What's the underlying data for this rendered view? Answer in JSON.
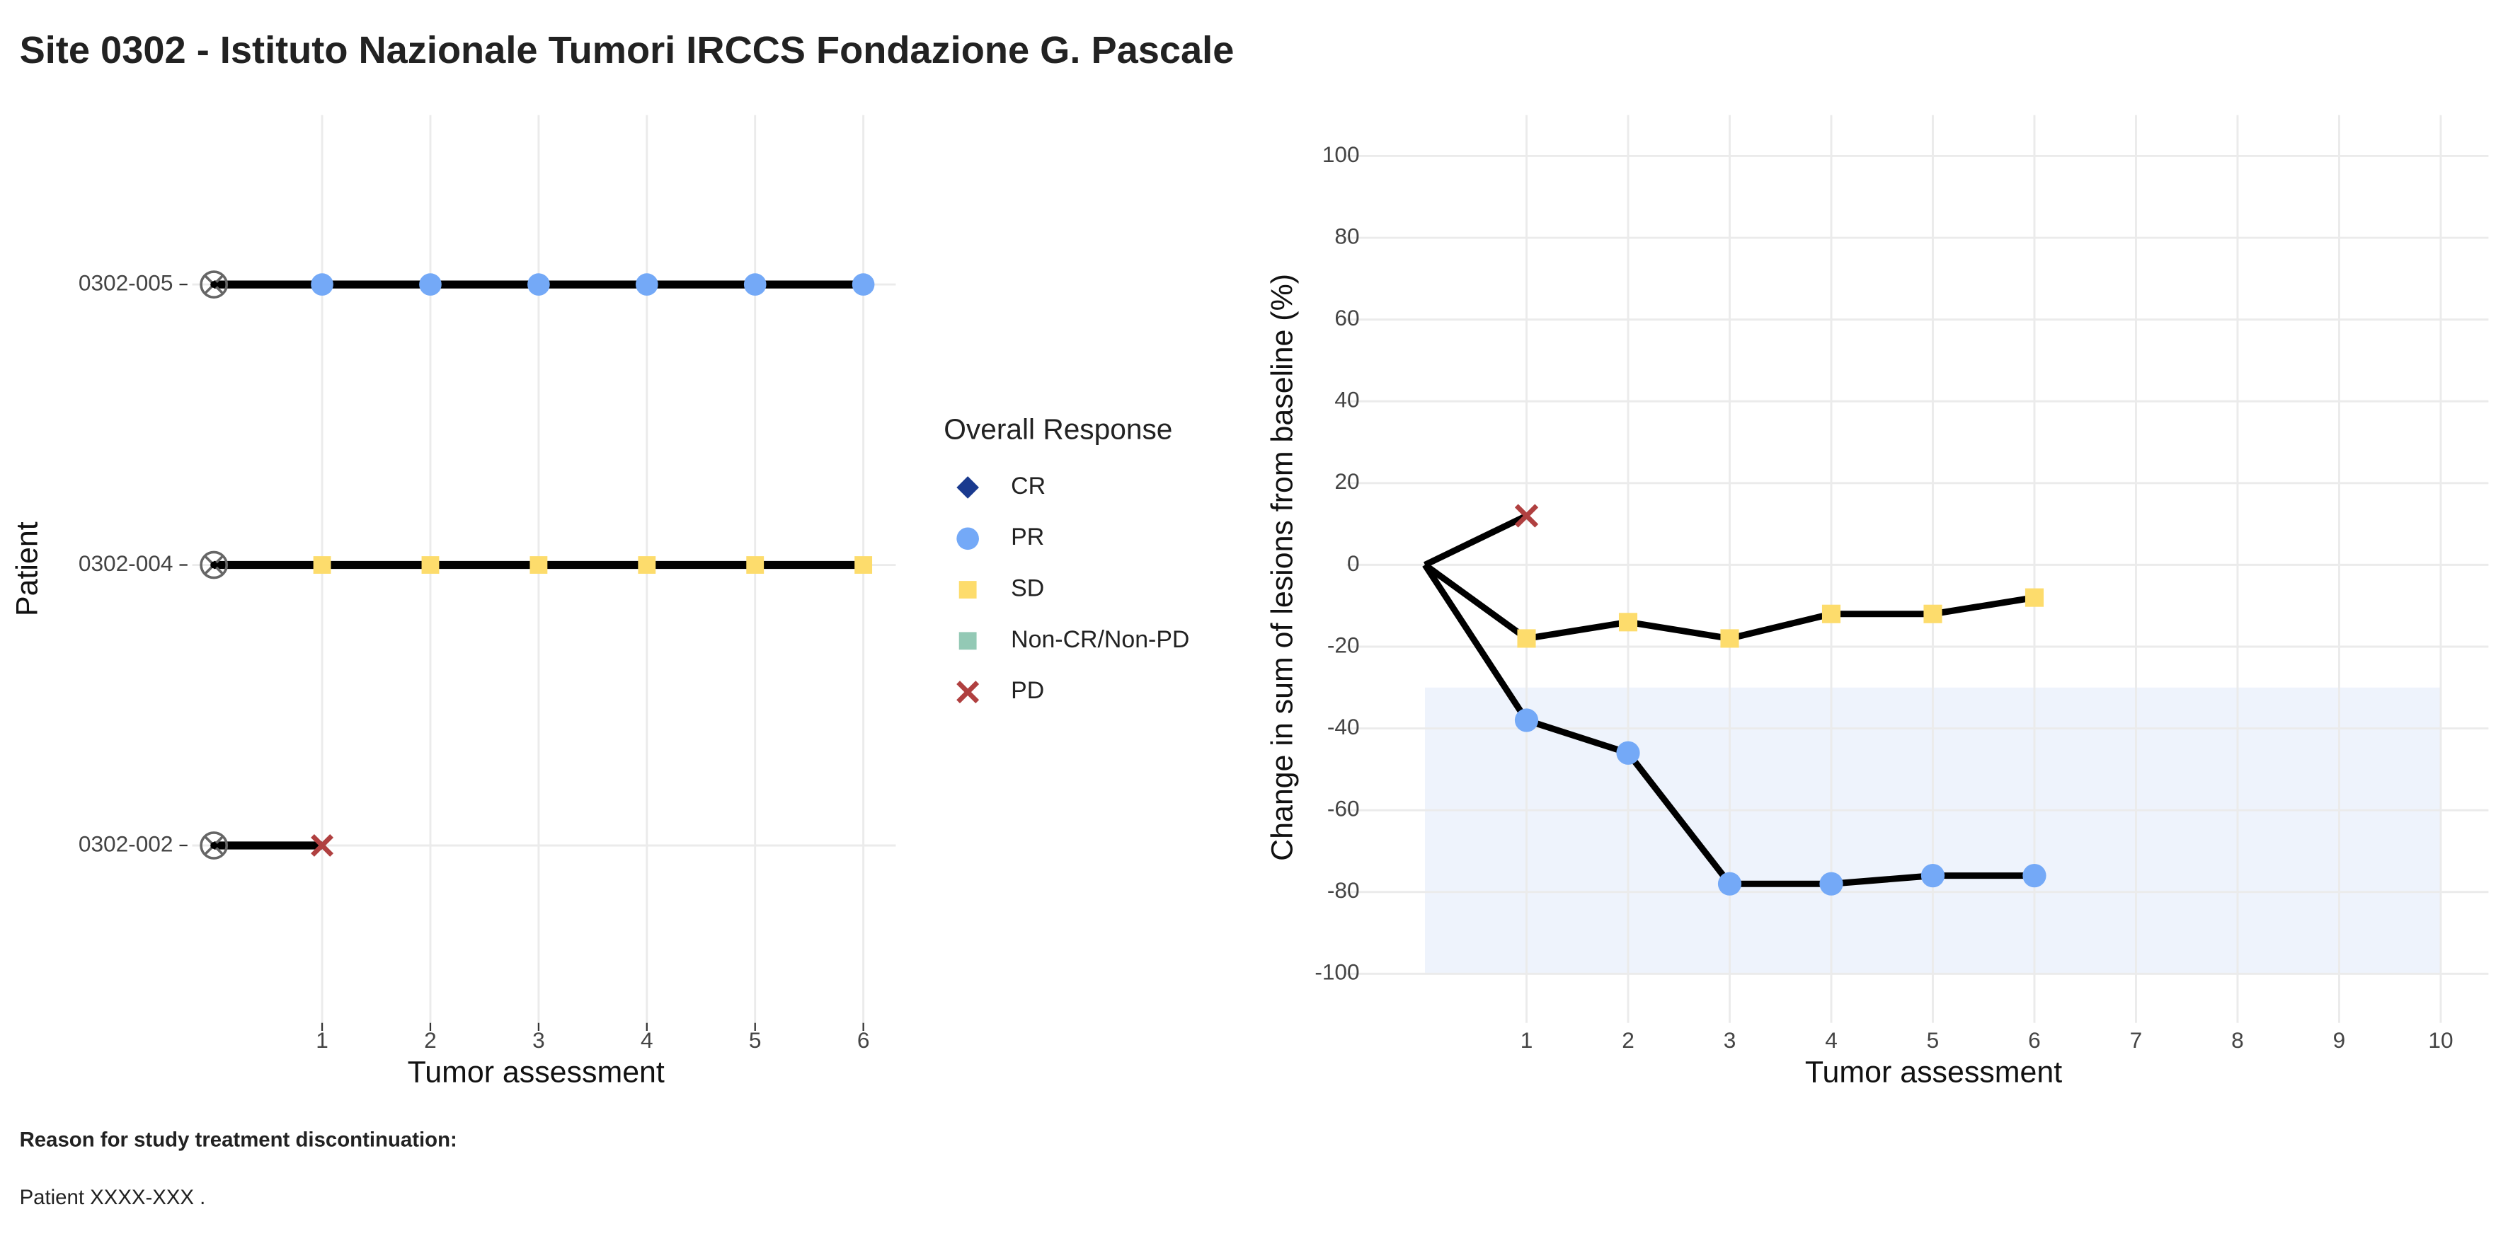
{
  "title": "Site 0302 - Istituto Nazionale Tumori IRCCS Fondazione G. Pascale",
  "chart_data": [
    {
      "type": "swimmer",
      "x_label": "Tumor assessment",
      "y_label": "Patient",
      "xlim": [
        -0.2,
        6.3
      ],
      "xticks": [
        1,
        2,
        3,
        4,
        5,
        6
      ],
      "grid": true,
      "line_color": "#000000",
      "baseline_color": "#666666",
      "patients": [
        {
          "id": "0302-005",
          "x": [
            0,
            1,
            2,
            3,
            4,
            5,
            6
          ],
          "response": [
            null,
            "PR",
            "PR",
            "PR",
            "PR",
            "PR",
            "PR"
          ]
        },
        {
          "id": "0302-004",
          "x": [
            0,
            1,
            2,
            3,
            4,
            5,
            6
          ],
          "response": [
            null,
            "SD",
            "SD",
            "SD",
            "SD",
            "SD",
            "SD"
          ]
        },
        {
          "id": "0302-002",
          "x": [
            0,
            1
          ],
          "response": [
            null,
            "PD"
          ]
        }
      ]
    },
    {
      "type": "spider",
      "x_label": "Tumor assessment",
      "y_label": "Change in sum of lesions from baseline (%)",
      "xlim": [
        -0.77,
        10.47
      ],
      "xticks": [
        1,
        2,
        3,
        4,
        5,
        6,
        7,
        8,
        9,
        10
      ],
      "ylim": [
        -112,
        110
      ],
      "yticks": [
        -100,
        -80,
        -60,
        -40,
        -20,
        0,
        20,
        40,
        60,
        80,
        100
      ],
      "grid": true,
      "line_color": "#000000",
      "band": {
        "x": [
          0,
          10
        ],
        "y": [
          -30,
          -100
        ],
        "color": "#eef3fc"
      },
      "series": [
        {
          "x": [
            0,
            1
          ],
          "y": [
            0,
            12
          ],
          "response": [
            null,
            "PD"
          ]
        },
        {
          "x": [
            0,
            1,
            2,
            3,
            4,
            5,
            6
          ],
          "y": [
            0,
            -18,
            -14,
            -18,
            -12,
            -12,
            -8
          ],
          "response": [
            null,
            "SD",
            "SD",
            "SD",
            "SD",
            "SD",
            "SD"
          ]
        },
        {
          "x": [
            0,
            1,
            2,
            3,
            4,
            5,
            6
          ],
          "y": [
            0,
            -38,
            -46,
            -78,
            -78,
            -76,
            -76
          ],
          "response": [
            null,
            "PR",
            "PR",
            "PR",
            "PR",
            "PR",
            "PR"
          ]
        }
      ]
    }
  ],
  "legend": {
    "title": "Overall Response",
    "items": [
      {
        "name": "CR",
        "color": "#1a3a8f",
        "shape": "diamond"
      },
      {
        "name": "PR",
        "color": "#74a9f7",
        "shape": "circle"
      },
      {
        "name": "SD",
        "color": "#fddc6c",
        "shape": "square"
      },
      {
        "name": "Non-CR/Non-PD",
        "color": "#93c9b5",
        "shape": "square"
      },
      {
        "name": "PD",
        "color": "#b04040",
        "shape": "cross"
      }
    ]
  },
  "footer": {
    "heading": "Reason for study treatment discontinuation:",
    "text": "Patient XXXX-XXX ."
  }
}
